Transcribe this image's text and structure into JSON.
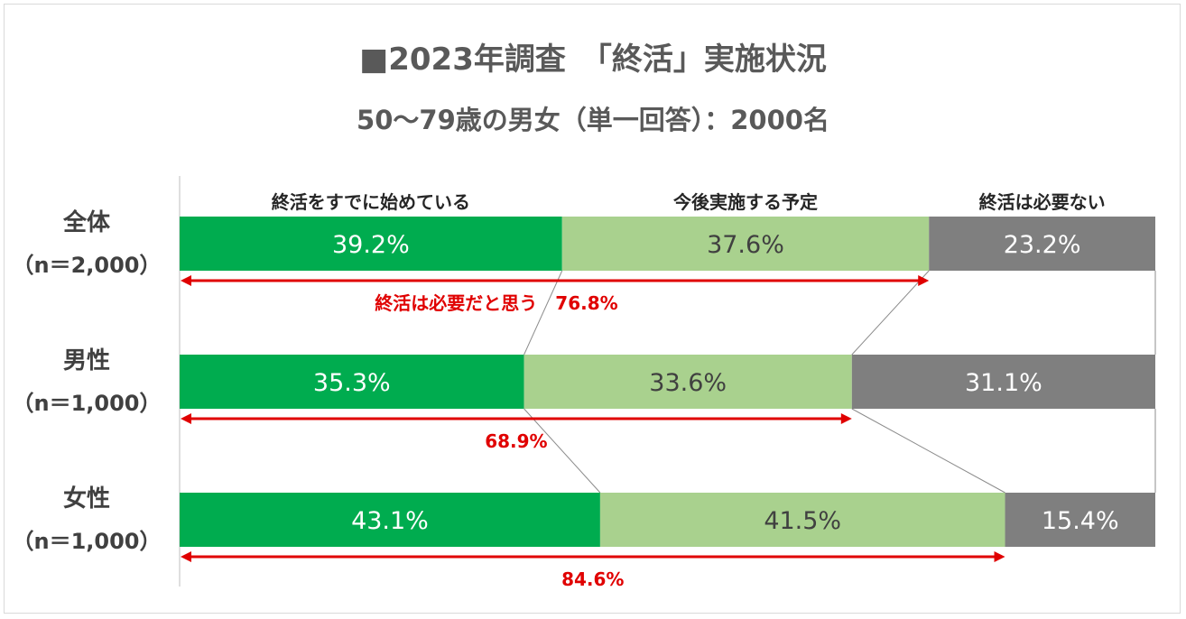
{
  "chart_data": {
    "type": "bar",
    "stacked": true,
    "orientation": "horizontal",
    "percent_scale": true,
    "title": "■2023年調査　「終活」実施状況",
    "subtitle": "50～79歳の男女（単一回答）：2000名",
    "categories": [
      {
        "label": "全体",
        "n": "（n＝2,000）"
      },
      {
        "label": "男性",
        "n": "（n＝1,000）"
      },
      {
        "label": "女性",
        "n": "（n＝1,000）"
      }
    ],
    "series": [
      {
        "name": "終活をすでに始めている",
        "color": "#00ac4f",
        "label_color": "#ffffff",
        "values": [
          39.2,
          35.3,
          43.1
        ],
        "labels": [
          "39.2%",
          "35.3%",
          "43.1%"
        ]
      },
      {
        "name": "今後実施する予定",
        "color": "#a9d18e",
        "label_color": "#404040",
        "values": [
          37.6,
          33.6,
          41.5
        ],
        "labels": [
          "37.6%",
          "33.6%",
          "41.5%"
        ]
      },
      {
        "name": "終活は必要ない",
        "color": "#7f7f7f",
        "label_color": "#ffffff",
        "values": [
          23.2,
          31.1,
          15.4
        ],
        "labels": [
          "23.2%",
          "31.1%",
          "15.4%"
        ]
      }
    ],
    "annotations": [
      {
        "category_index": 0,
        "value": 76.8,
        "text": "終活は必要だと思う　76.8%"
      },
      {
        "category_index": 1,
        "value": 68.9,
        "text": "68.9%"
      },
      {
        "category_index": 2,
        "value": 84.6,
        "text": "84.6%"
      }
    ],
    "annotation_color": "#e00000",
    "legend_placement": "top",
    "grid": false
  }
}
